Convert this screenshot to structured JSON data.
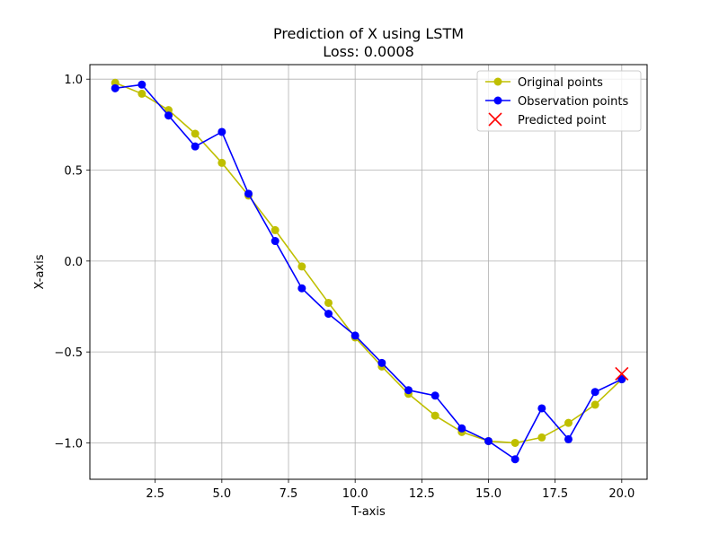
{
  "chart_data": {
    "type": "line",
    "title": "Prediction of X using LSTM",
    "subtitle": "Loss: 0.0008",
    "xlabel": "T-axis",
    "ylabel": "X-axis",
    "xlim": [
      0.05,
      20.95
    ],
    "ylim": [
      -1.2,
      1.08
    ],
    "xticks": [
      2.5,
      5.0,
      7.5,
      10.0,
      12.5,
      15.0,
      17.5,
      20.0
    ],
    "xtick_labels": [
      "2.5",
      "5.0",
      "7.5",
      "10.0",
      "12.5",
      "15.0",
      "17.5",
      "20.0"
    ],
    "yticks": [
      1.0,
      0.5,
      0.0,
      -0.5,
      -1.0
    ],
    "ytick_labels": [
      "1.0",
      "0.5",
      "0.0",
      "−0.5",
      "−1.0"
    ],
    "grid": true,
    "legend_position": "top-right",
    "series": [
      {
        "name": "Original points",
        "color": "#bfbf00",
        "marker": "circle",
        "x": [
          1,
          2,
          3,
          4,
          5,
          6,
          7,
          8,
          9,
          10,
          11,
          12,
          13,
          14,
          15,
          16,
          17,
          18,
          19,
          20
        ],
        "y": [
          0.98,
          0.92,
          0.83,
          0.7,
          0.54,
          0.36,
          0.17,
          -0.03,
          -0.23,
          -0.42,
          -0.58,
          -0.73,
          -0.85,
          -0.94,
          -0.99,
          -1.0,
          -0.97,
          -0.89,
          -0.79,
          -0.65
        ]
      },
      {
        "name": "Observation points",
        "color": "#0000ff",
        "marker": "circle",
        "x": [
          1,
          2,
          3,
          4,
          5,
          6,
          7,
          8,
          9,
          10,
          11,
          12,
          13,
          14,
          15,
          16,
          17,
          18,
          19,
          20
        ],
        "y": [
          0.95,
          0.97,
          0.8,
          0.63,
          0.71,
          0.37,
          0.11,
          -0.15,
          -0.29,
          -0.41,
          -0.56,
          -0.71,
          -0.74,
          -0.92,
          -0.99,
          -1.09,
          -0.81,
          -0.98,
          -0.72,
          -0.65
        ]
      },
      {
        "name": "Predicted point",
        "color": "#ff0000",
        "marker": "x",
        "x": [
          20
        ],
        "y": [
          -0.62
        ]
      }
    ]
  }
}
